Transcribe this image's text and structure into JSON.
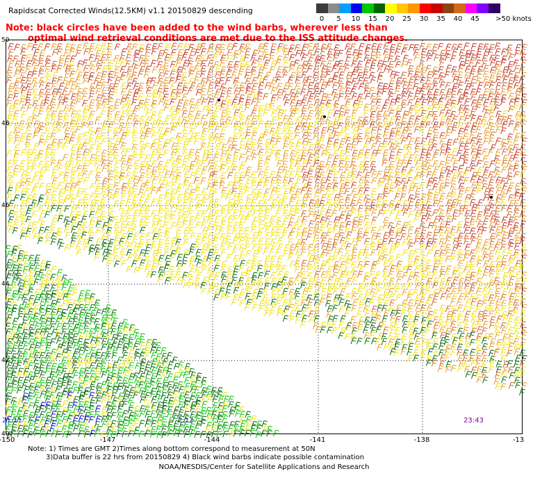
{
  "header": {
    "title": "Rapidscat Corrected Winds(12.5KM) v1.1 20150829 descending",
    "note_line1": "Note: black circles have been added to the wind barbs, wherever less than",
    "note_line2": "optimal wind retrieval conditions are met due to the ISS attitude changes."
  },
  "scale": {
    "unit_label": ">50 knots",
    "labels": [
      "0",
      "5",
      "10",
      "15",
      "20",
      "25",
      "30",
      "35",
      "40",
      "45"
    ],
    "colors": [
      "#3c3c3c",
      "#8c8c8c",
      "#00a0ff",
      "#0000ff",
      "#00c800",
      "#006400",
      "#ffff00",
      "#ffc800",
      "#ff9600",
      "#ff0000",
      "#c80000",
      "#8b4513",
      "#d2691e",
      "#ff00ff",
      "#8000ff",
      "#300060"
    ]
  },
  "map": {
    "y_labels": [
      "50",
      "48",
      "46",
      "44",
      "42",
      "40"
    ],
    "x_labels": [
      "-150",
      "-147",
      "-144",
      "-141",
      "-138",
      "-13"
    ],
    "time_labels": [
      "21:11",
      "2:12",
      "23:43"
    ],
    "colors": {
      "yellow": "#f0e000",
      "orange": "#e89a1a",
      "darkorange": "#d06020",
      "red": "#c03020",
      "darkgreen": "#006400",
      "green": "#00c800",
      "blue": "#0000cc"
    }
  },
  "footer": {
    "notes_line1": "Note: 1) Times are GMT 2)Times along bottom correspond to measurement at 50N",
    "notes_line2": "3)Data buffer is 22 hrs from 20150829 4) Black wind barbs indicate possible contamination",
    "credit": "NOAA/NESDIS/Center for Satellite Applications and Research"
  }
}
